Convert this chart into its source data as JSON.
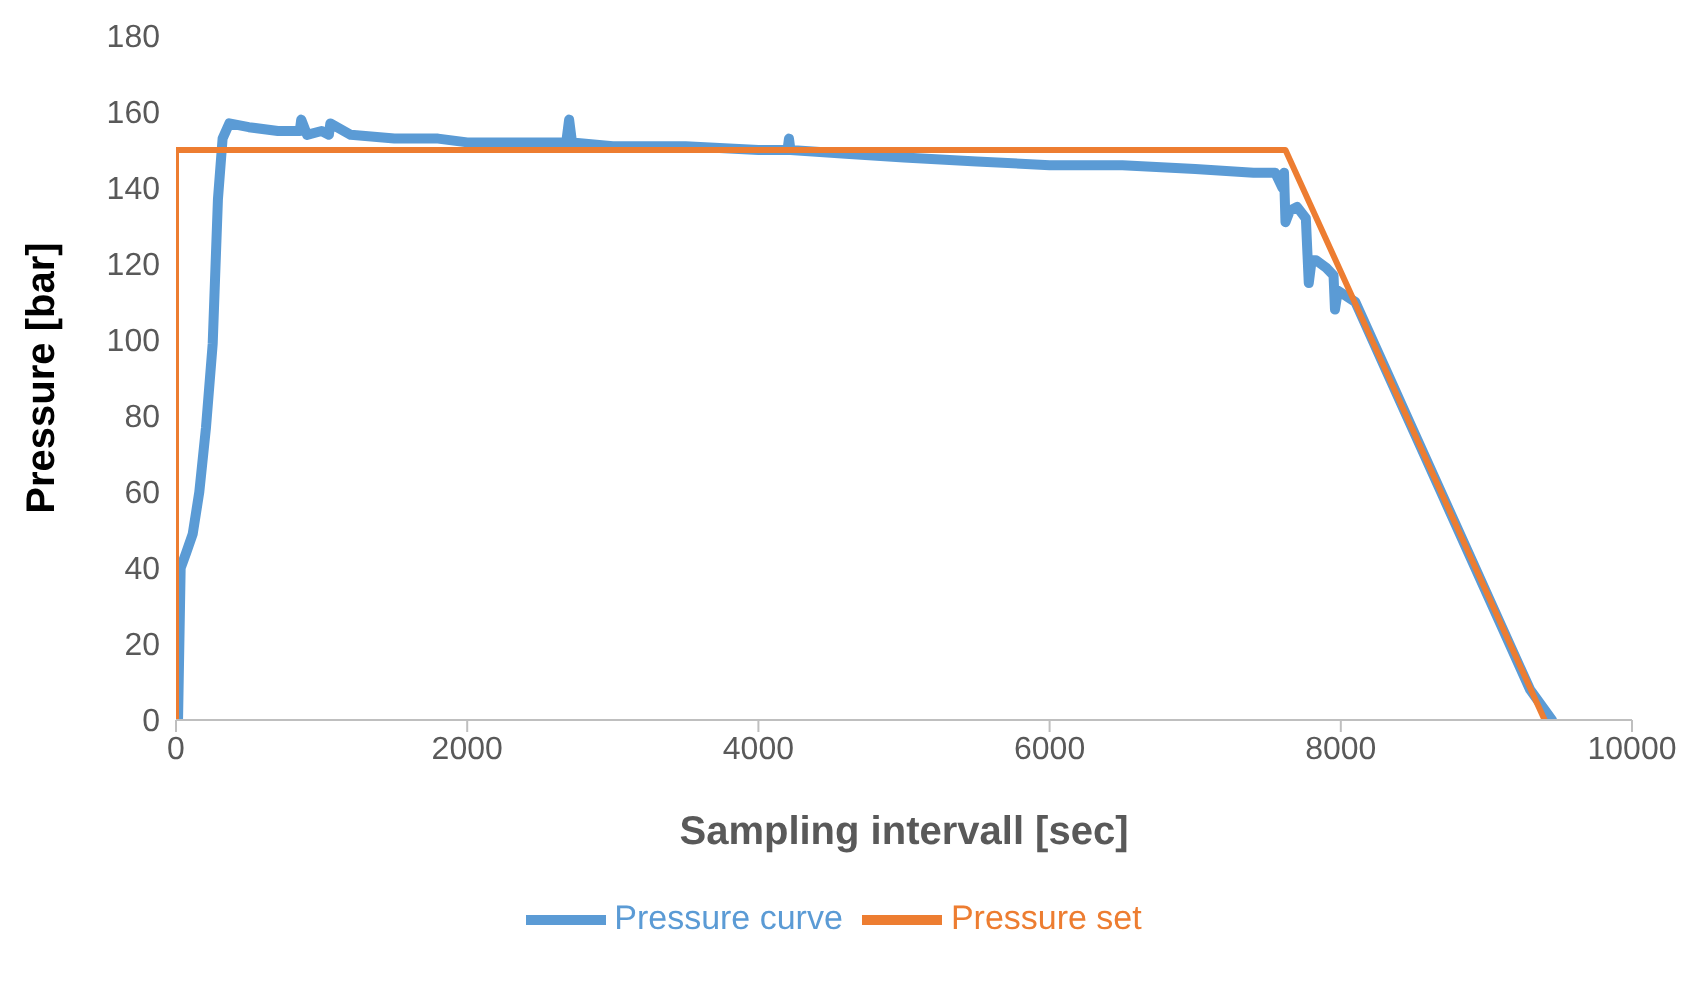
{
  "chart_data": {
    "type": "line",
    "xlabel": "Sampling intervall [sec]",
    "ylabel": "Pressure [bar]",
    "xlim": [
      0,
      10000
    ],
    "xticks": [
      0,
      2000,
      4000,
      6000,
      8000,
      10000
    ],
    "ylim": [
      0,
      180
    ],
    "yticks": [
      0,
      20,
      40,
      60,
      80,
      100,
      120,
      140,
      160,
      180
    ],
    "grid": false,
    "legend": "bottom",
    "marker": "none",
    "line_style": "solid",
    "series": [
      {
        "name": "Pressure curve",
        "color": "#5b9bd5",
        "x": [
          0,
          14,
          32,
          70,
          115,
          160,
          206,
          252,
          288,
          320,
          366,
          500,
          700,
          850,
          860,
          900,
          1000,
          1050,
          1060,
          1200,
          1500,
          1800,
          2000,
          2300,
          2600,
          2680,
          2700,
          2720,
          3000,
          3500,
          4000,
          4200,
          4210,
          4220,
          4600,
          5000,
          5500,
          6000,
          6500,
          7000,
          7400,
          7550,
          7600,
          7610,
          7620,
          7650,
          7700,
          7760,
          7780,
          7800,
          7830,
          7900,
          7950,
          7960,
          7980,
          8100,
          8300,
          8500,
          8700,
          8900,
          9100,
          9300,
          9450
        ],
        "values": [
          0,
          0,
          40,
          44,
          49,
          60,
          77,
          99,
          137,
          153,
          157,
          156,
          155,
          155,
          158,
          154,
          155,
          154,
          157,
          154,
          153,
          153,
          152,
          152,
          152,
          152,
          158,
          152,
          151,
          151,
          150,
          150,
          153,
          150,
          149,
          148,
          147,
          146,
          146,
          145,
          144,
          144,
          140,
          144,
          131,
          134,
          135,
          132,
          115,
          121,
          121,
          119,
          117,
          108,
          113,
          110,
          93,
          76,
          59,
          42,
          25,
          8,
          0
        ]
      },
      {
        "name": "Pressure set",
        "color": "#ed7d31",
        "x": [
          0,
          0,
          7620,
          9400
        ],
        "values": [
          0,
          150,
          150,
          0
        ]
      }
    ]
  }
}
